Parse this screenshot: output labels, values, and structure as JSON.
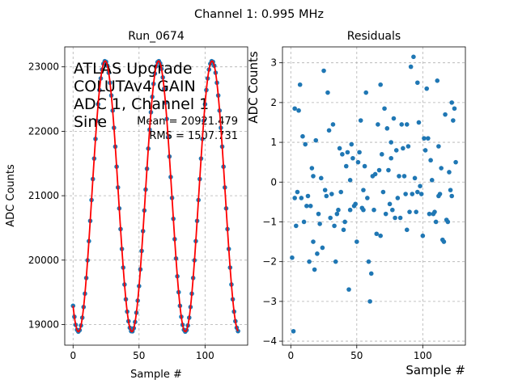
{
  "figure": {
    "suptitle": "Channel 1: 0.995 MHz"
  },
  "chart_data": [
    {
      "type": "line",
      "title": "Run_0674",
      "xlabel": "Sample #",
      "ylabel": "ADC Counts",
      "xlim": [
        -6.3,
        132.3
      ],
      "ylim": [
        18680,
        23310
      ],
      "xticks": [
        0,
        50,
        100
      ],
      "yticks": [
        19000,
        20000,
        21000,
        22000,
        23000
      ],
      "grid": true,
      "annotation_lines": [
        "ATLAS Upgrade",
        "COLUTAv4 GAIN",
        "ADC 1, Channel 1",
        "Sine"
      ],
      "stats_lines": [
        "Mean = 20921.479",
        "RMS = 1507.731"
      ],
      "fit": {
        "mean": 20990,
        "amplitude": 2100,
        "period": 40.5,
        "phase_sample": 24.3
      },
      "series": [
        {
          "kind": "scatter",
          "n_points": 126,
          "x_start": 0,
          "color": "#1f77b4"
        },
        {
          "kind": "line",
          "color": "#ff0000"
        }
      ]
    },
    {
      "type": "scatter",
      "title": "Residuals",
      "xlabel": "Sample #",
      "ylabel": "ADC Counts",
      "xlim": [
        -6.3,
        132.3
      ],
      "ylim": [
        -4.1,
        3.4
      ],
      "xticks": [
        0,
        50,
        100
      ],
      "yticks": [
        -4,
        -3,
        -2,
        -1,
        0,
        1,
        2,
        3
      ],
      "grid": true,
      "series": [
        {
          "color": "#1f77b4",
          "x": [
            1,
            2,
            3,
            4,
            5,
            6,
            7,
            8,
            9,
            10,
            11,
            12,
            13,
            14,
            15,
            16,
            17,
            18,
            19,
            20,
            21,
            22,
            23,
            24,
            25,
            26,
            27,
            28,
            29,
            30,
            31,
            32,
            33,
            34,
            35,
            36,
            37,
            38,
            39,
            40,
            41,
            42,
            43,
            44,
            45,
            46,
            47,
            48,
            49,
            50,
            51,
            52,
            53,
            54,
            55,
            56,
            57,
            58,
            59,
            60,
            61,
            62,
            63,
            64,
            65,
            66,
            67,
            68,
            69,
            70,
            71,
            72,
            73,
            74,
            75,
            76,
            77,
            78,
            79,
            80,
            81,
            82,
            83,
            84,
            85,
            86,
            87,
            88,
            89,
            90,
            91,
            92,
            93,
            94,
            95,
            96,
            97,
            98,
            99,
            100,
            101,
            102,
            103,
            104,
            105,
            106,
            107,
            108,
            109,
            110,
            111,
            112,
            113,
            114,
            115,
            116,
            117,
            118,
            119,
            120,
            121,
            122,
            123,
            124,
            125
          ],
          "y": [
            -1.9,
            -3.75,
            1.85,
            -1.1,
            -0.25,
            1.8,
            2.45,
            -0.4,
            1.15,
            -1.0,
            0.95,
            -0.6,
            -0.35,
            -2.0,
            -0.6,
            0.35,
            0.15,
            -2.2,
            1.05,
            -1.8,
            -0.8,
            -1.05,
            0.1,
            -1.65,
            2.8,
            -0.2,
            -0.35,
            2.25,
            1.3,
            -0.9,
            -0.3,
            1.45,
            -1.1,
            -2.0,
            -0.8,
            -0.7,
            0.85,
            -0.25,
            0.7,
            -1.2,
            -1.0,
            0.4,
            0.75,
            -2.7,
            -0.7,
            0.95,
            0.6,
            -0.6,
            -0.55,
            -1.5,
            0.5,
            0.75,
            1.55,
            -0.65,
            -0.7,
            0.4,
            2.25,
            -0.4,
            -2.0,
            -3.0,
            -2.3,
            0.15,
            -0.7,
            0.2,
            -1.3,
            1.45,
            0.3,
            -1.35,
            0.7,
            -0.25,
            1.85,
            -0.8,
            1.35,
            0.3,
            -0.55,
            1.0,
            -0.7,
            1.6,
            -0.9,
            0.8,
            -0.4,
            0.15,
            -0.9,
            1.45,
            0.85,
            0.15,
            -0.3,
            1.45,
            0.9,
            -0.75,
            2.9,
            -0.3,
            3.15,
            0.1,
            -0.75,
            -0.25,
            1.5,
            -0.1,
            -0.3,
            -1.35,
            1.1,
            0.8,
            2.35,
            1.1,
            -0.8,
            0.55,
            0.05,
            -0.8,
            -0.75,
            -1.0,
            2.55,
            -0.35,
            -0.3,
            0.35,
            -1.45,
            -1.5,
            1.7,
            -0.95,
            -1.0,
            0.25,
            -0.2,
            2.0,
            1.55,
            1.85,
            0.5
          ],
          "extra_points": [
            [
              3,
              -0.4
            ],
            [
              17,
              -1.5
            ],
            [
              55,
              -0.2
            ],
            [
              68,
              2.45
            ],
            [
              96,
              2.5
            ],
            [
              76,
              0.6
            ],
            [
              112,
              0.9
            ],
            [
              122,
              -0.35
            ],
            [
              88,
              -1.2
            ],
            [
              45,
              0.05
            ]
          ]
        }
      ]
    }
  ]
}
